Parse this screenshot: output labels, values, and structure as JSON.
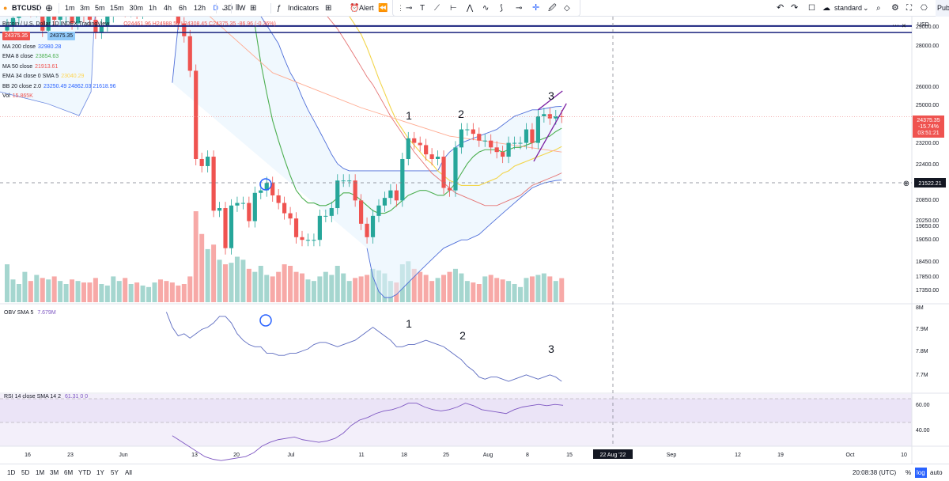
{
  "toolbar": {
    "symbol": "BTCUSD",
    "timeframes": [
      "1m",
      "3m",
      "5m",
      "15m",
      "30m",
      "1h",
      "4h",
      "6h",
      "12h",
      "D",
      "3D",
      "W"
    ],
    "active_timeframe": "D",
    "indicators_label": "Indicators",
    "alert_label": "Alert",
    "layout_label": "standard",
    "publish_label": "Pub"
  },
  "legend": {
    "title": "Bitcoin / U.S. Dollar  1D  INDEX  TradingView",
    "ohlc": "O24461.96 H24988.50 L24308.45 C24375.35 -86.96 (-0.36%)",
    "price_badge_left": "24375.35",
    "price_badge_right": "24375.35",
    "indicators": [
      {
        "label": "MA 200 close",
        "values": "32980.28",
        "color": "#2962ff"
      },
      {
        "label": "EMA 8 close",
        "values": "23854.63",
        "color": "#4caf50"
      },
      {
        "label": "MA 50 close",
        "values": "21913.61",
        "color": "#ef5350"
      },
      {
        "label": "EMA 34 close 0 SMA 5",
        "values": "23040.29",
        "color": "#ffd54f"
      },
      {
        "label": "BB 20 close 2.0",
        "values": "23250.49  24862.03  21618.96",
        "color": "#2962ff"
      },
      {
        "label": "Vol",
        "values": "15.865K",
        "color": "#ef5350"
      }
    ]
  },
  "obv_legend": {
    "label": "OBV SMA 5",
    "value": "7.679M"
  },
  "rsi_legend": {
    "label": "RSI 14 close SMA 14 2",
    "value": "61.31  0  0"
  },
  "price_axis": {
    "currency": "USD",
    "ticks": [
      "29000.00",
      "28000.00",
      "26000.00",
      "25000.00",
      "23200.00",
      "22400.00",
      "20850.00",
      "20250.00",
      "19650.00",
      "19050.00",
      "18450.00",
      "17850.00",
      "17350.00"
    ],
    "last_price": "24375.35",
    "change_pct": "-15.74%",
    "countdown": "03:51:21",
    "crosshair_price": "21522.21"
  },
  "obv_axis": {
    "ticks": [
      "8M",
      "7.9M",
      "7.8M",
      "7.7M"
    ]
  },
  "rsi_axis": {
    "ticks": [
      "60.00",
      "40.00"
    ]
  },
  "time_axis": {
    "ticks": [
      "16",
      "23",
      "Jun",
      "13",
      "20",
      "Jul",
      "11",
      "18",
      "25",
      "Aug",
      "8",
      "15",
      "Sep",
      "12",
      "19",
      "Oct",
      "10"
    ],
    "crosshair_label": "22 Aug '22"
  },
  "annotations": {
    "wave_labels": [
      "1",
      "2",
      "3"
    ]
  },
  "bottombar": {
    "ranges": [
      "1D",
      "5D",
      "1M",
      "3M",
      "6M",
      "YTD",
      "1Y",
      "5Y",
      "All"
    ],
    "clock": "20:08:38 (UTC)",
    "pct": "%",
    "log": "log",
    "auto": "auto"
  },
  "colors": {
    "up": "#26a69a",
    "down": "#ef5350",
    "bb": "#2962ff",
    "obv": "#7e57c2",
    "rsi": "#7e57c2"
  },
  "chart_data": {
    "type": "candlestick",
    "x": [
      "2022-05-12",
      "2022-05-13",
      "2022-05-14",
      "2022-05-15",
      "2022-05-16",
      "2022-05-17",
      "2022-05-18",
      "2022-05-19",
      "2022-05-20",
      "2022-05-21",
      "2022-05-22",
      "2022-05-23",
      "2022-05-24",
      "2022-05-25",
      "2022-05-26",
      "2022-05-27",
      "2022-05-28",
      "2022-05-29",
      "2022-05-30",
      "2022-05-31",
      "2022-06-01",
      "2022-06-02",
      "2022-06-03",
      "2022-06-04",
      "2022-06-05",
      "2022-06-06",
      "2022-06-07",
      "2022-06-08",
      "2022-06-09",
      "2022-06-10",
      "2022-06-11",
      "2022-06-12",
      "2022-06-13",
      "2022-06-14",
      "2022-06-15",
      "2022-06-16",
      "2022-06-17",
      "2022-06-18",
      "2022-06-19",
      "2022-06-20",
      "2022-06-21",
      "2022-06-22",
      "2022-06-23",
      "2022-06-24",
      "2022-06-25",
      "2022-06-26",
      "2022-06-27",
      "2022-06-28",
      "2022-06-29",
      "2022-06-30",
      "2022-07-01",
      "2022-07-02",
      "2022-07-03",
      "2022-07-04",
      "2022-07-05",
      "2022-07-06",
      "2022-07-07",
      "2022-07-08",
      "2022-07-09",
      "2022-07-10",
      "2022-07-11",
      "2022-07-12",
      "2022-07-13",
      "2022-07-14",
      "2022-07-15",
      "2022-07-16",
      "2022-07-17",
      "2022-07-18",
      "2022-07-19",
      "2022-07-20",
      "2022-07-21",
      "2022-07-22",
      "2022-07-23",
      "2022-07-24",
      "2022-07-25",
      "2022-07-26",
      "2022-07-27",
      "2022-07-28",
      "2022-07-29",
      "2022-07-30",
      "2022-07-31",
      "2022-08-01",
      "2022-08-02",
      "2022-08-03",
      "2022-08-04",
      "2022-08-05",
      "2022-08-06",
      "2022-08-07",
      "2022-08-08",
      "2022-08-09",
      "2022-08-10",
      "2022-08-11",
      "2022-08-12",
      "2022-08-13",
      "2022-08-14"
    ],
    "close": [
      29000,
      29400,
      30100,
      30200,
      29800,
      30300,
      28700,
      29700,
      29300,
      29500,
      30300,
      29100,
      29600,
      29500,
      29300,
      28600,
      29000,
      29500,
      31700,
      31800,
      29800,
      30400,
      29700,
      29900,
      29900,
      31300,
      31100,
      30200,
      30100,
      29100,
      28400,
      26600,
      22500,
      22200,
      22600,
      20400,
      20500,
      19000,
      20600,
      20700,
      20700,
      20000,
      21100,
      21200,
      21500,
      21000,
      20700,
      20300,
      20100,
      19400,
      19300,
      19300,
      19300,
      20200,
      20200,
      20500,
      21600,
      21600,
      21600,
      20800,
      19900,
      19400,
      20200,
      20600,
      20900,
      21200,
      20800,
      22500,
      23400,
      23200,
      23100,
      22700,
      22500,
      22600,
      21300,
      21200,
      23000,
      23800,
      23800,
      23600,
      23300,
      23300,
      23000,
      22800,
      22600,
      23200,
      23200,
      23200,
      23800,
      23200,
      24400,
      24500,
      24300,
      24400,
      24380
    ],
    "ohlc_visible_last": {
      "open": 24461.96,
      "high": 24988.5,
      "low": 24308.45,
      "close": 24375.35
    },
    "bb_upper": [
      26000,
      29000,
      31500,
      32500,
      32000,
      31800,
      31600,
      31400,
      31200,
      31000,
      30800,
      30500,
      30300,
      30000,
      29800,
      29500,
      29000,
      28500,
      28000,
      27200,
      26500,
      26000,
      25300,
      24700,
      24200,
      23700,
      23200,
      22700,
      22300,
      22100,
      22000,
      22000,
      22000,
      22000,
      22000,
      22000,
      22000,
      22000,
      22000,
      22000,
      22000,
      22000,
      22000,
      22000,
      22000,
      22000,
      22500,
      22800,
      23000,
      23200,
      23300,
      23400,
      23500,
      23600,
      23700,
      23800,
      24000,
      24200,
      24400,
      24500,
      24600,
      24700,
      24700,
      24750,
      24800,
      24850,
      24862
    ],
    "bb_lower": [
      19000,
      18000,
      17500,
      17300,
      17300,
      17400,
      17600,
      17800,
      18000,
      18200,
      18400,
      18600,
      18800,
      19000,
      19100,
      19200,
      19300,
      19300,
      19400,
      19500,
      19700,
      19900,
      20100,
      20300,
      20500,
      20700,
      20900,
      21100,
      21300,
      21400,
      21500,
      21550,
      21600,
      21619
    ],
    "ema8": [
      29000,
      27000,
      25500,
      24200,
      23300,
      22500,
      21800,
      21200,
      20900,
      20700,
      20700,
      20600,
      20600,
      20700,
      20900,
      21100,
      21100,
      21000,
      20800,
      20600,
      20400,
      20300,
      20300,
      20400,
      20600,
      20800,
      21000,
      21100,
      21200,
      21200,
      21100,
      21000,
      21000,
      21200,
      21500,
      21900,
      22300,
      22600,
      22800,
      22900,
      22900,
      22900,
      22800,
      22900,
      23000,
      23000,
      23100,
      23200,
      23300,
      23400,
      23500,
      23700,
      23854
    ],
    "ema34": [
      29500,
      29000,
      28500,
      27800,
      27000,
      26200,
      25500,
      24800,
      24200,
      23800,
      23400,
      23100,
      22800,
      22500,
      22300,
      22000,
      21800,
      21600,
      21500,
      21400,
      21400,
      21400,
      21400,
      21500,
      21600,
      21700,
      21900,
      22000,
      22200,
      22300,
      22400,
      22500,
      22600,
      22700,
      22800,
      22900,
      23040
    ],
    "ma50": [
      30500,
      30300,
      30000,
      29600,
      29200,
      28800,
      28300,
      27800,
      27300,
      26800,
      26300,
      25900,
      25400,
      24900,
      24400,
      24000,
      23600,
      23200,
      22800,
      22500,
      22200,
      21900,
      21700,
      21500,
      21300,
      21100,
      21000,
      20900,
      20800,
      20700,
      20600,
      20600,
      20600,
      20700,
      20800,
      20900,
      21000,
      21200,
      21400,
      21500,
      21600,
      21700,
      21800,
      21913
    ],
    "ma200": [
      32980
    ],
    "volume_k": [
      25,
      15,
      12,
      20,
      14,
      18,
      16,
      15,
      17,
      14,
      12,
      15,
      14,
      13,
      13,
      16,
      12,
      11,
      17,
      14,
      16,
      12,
      13,
      11,
      10,
      13,
      15,
      14,
      13,
      11,
      12,
      17,
      60,
      45,
      35,
      38,
      28,
      25,
      26,
      30,
      28,
      22,
      20,
      24,
      18,
      17,
      20,
      25,
      24,
      20,
      19,
      15,
      14,
      17,
      20,
      18,
      24,
      19,
      14,
      16,
      17,
      18,
      22,
      21,
      19,
      14,
      13,
      25,
      27,
      22,
      20,
      18,
      14,
      16,
      18,
      20,
      22,
      19,
      14,
      13,
      12,
      17,
      18,
      16,
      15,
      14,
      12,
      10,
      16,
      17,
      18,
      19,
      17,
      14,
      15.865
    ],
    "obv_m": [
      8.0,
      7.93,
      7.89,
      7.9,
      7.88,
      7.9,
      7.92,
      7.93,
      7.95,
      7.98,
      7.98,
      7.95,
      7.9,
      7.87,
      7.85,
      7.84,
      7.84,
      7.81,
      7.81,
      7.8,
      7.8,
      7.81,
      7.81,
      7.82,
      7.83,
      7.85,
      7.86,
      7.86,
      7.85,
      7.84,
      7.85,
      7.86,
      7.87,
      7.89,
      7.91,
      7.93,
      7.91,
      7.89,
      7.87,
      7.84,
      7.84,
      7.85,
      7.85,
      7.86,
      7.87,
      7.86,
      7.85,
      7.84,
      7.82,
      7.8,
      7.78,
      7.75,
      7.73,
      7.7,
      7.69,
      7.7,
      7.7,
      7.69,
      7.68,
      7.69,
      7.7,
      7.71,
      7.7,
      7.69,
      7.7,
      7.71,
      7.7,
      7.68
    ],
    "rsi": [
      38,
      34,
      30,
      26,
      22,
      20,
      19,
      20,
      21,
      22,
      25,
      30,
      33,
      35,
      36,
      37,
      35,
      34,
      33,
      34,
      36,
      40,
      46,
      50,
      52,
      55,
      57,
      58,
      60,
      63,
      63,
      60,
      58,
      57,
      58,
      60,
      63,
      61,
      58,
      57,
      56,
      55,
      58,
      60,
      61,
      62,
      61,
      62,
      61.31
    ],
    "ylim": [
      17200,
      29300
    ],
    "obv_ylim": [
      7.64,
      8.02
    ],
    "rsi_ylim": [
      30,
      70
    ],
    "title": "Bitcoin / U.S. Dollar  1D  INDEX  TradingView"
  }
}
